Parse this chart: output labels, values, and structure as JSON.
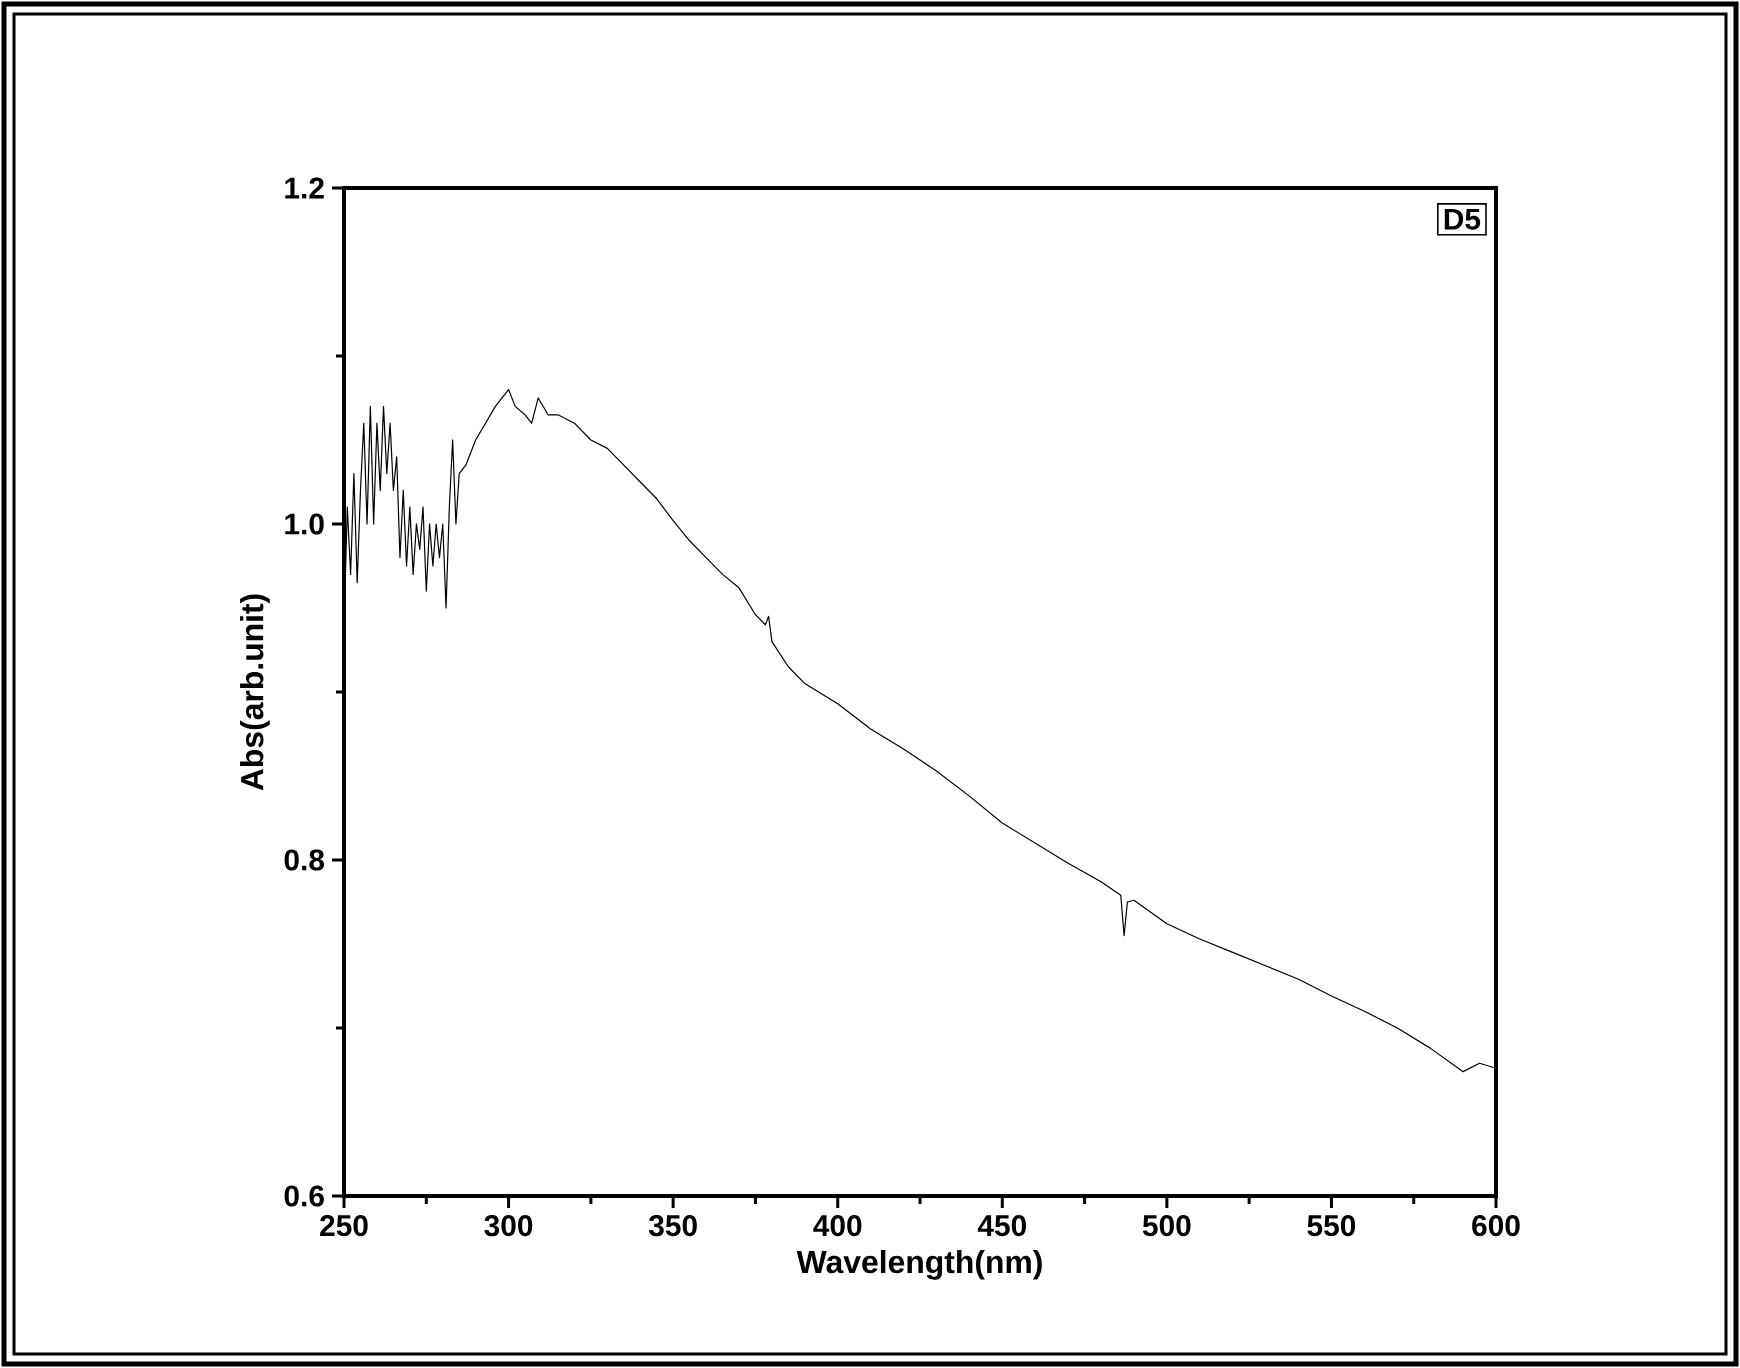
{
  "chart_data": {
    "type": "line",
    "xlabel": "Wavelength(nm)",
    "ylabel": "Abs(arb.unit)",
    "annotations": [
      "D5"
    ],
    "xlim": [
      250,
      600
    ],
    "xticks": [
      250,
      300,
      350,
      400,
      450,
      500,
      550,
      600
    ],
    "ylim": [
      0.6,
      1.2
    ],
    "yticks": [
      {
        "value": 0.6,
        "label": "0.6"
      },
      {
        "value": 0.8,
        "label": "0.8"
      },
      {
        "value": 1.0,
        "label": "1.0"
      },
      {
        "value": 1.2,
        "label": "1.2"
      }
    ],
    "grid": false,
    "marker": "none",
    "line_style": "solid",
    "series": [
      {
        "color": "#000000",
        "x": [
          250,
          251,
          252,
          253,
          254,
          255,
          256,
          257,
          258,
          259,
          260,
          261,
          262,
          263,
          264,
          265,
          266,
          267,
          268,
          269,
          270,
          271,
          272,
          273,
          274,
          275,
          276,
          277,
          278,
          279,
          280,
          281,
          282,
          283,
          284,
          285,
          287,
          290,
          293,
          296,
          298,
          300,
          302,
          305,
          307,
          309,
          312,
          315,
          320,
          325,
          330,
          335,
          340,
          345,
          350,
          355,
          360,
          365,
          370,
          375,
          378,
          379,
          380,
          385,
          390,
          400,
          410,
          420,
          430,
          440,
          450,
          460,
          470,
          480,
          486,
          487,
          488,
          490,
          500,
          510,
          520,
          530,
          540,
          550,
          560,
          570,
          580,
          590,
          595,
          600
        ],
        "values": [
          0.94,
          1.01,
          0.97,
          1.03,
          0.965,
          1.02,
          1.06,
          1.0,
          1.07,
          1.0,
          1.06,
          1.02,
          1.07,
          1.03,
          1.06,
          1.02,
          1.04,
          0.98,
          1.02,
          0.975,
          1.01,
          0.97,
          1.0,
          0.985,
          1.01,
          0.96,
          1.0,
          0.975,
          1.0,
          0.98,
          1.0,
          0.95,
          1.01,
          1.05,
          1.0,
          1.03,
          1.035,
          1.05,
          1.06,
          1.07,
          1.075,
          1.08,
          1.07,
          1.065,
          1.06,
          1.075,
          1.065,
          1.065,
          1.06,
          1.05,
          1.045,
          1.035,
          1.025,
          1.015,
          1.002,
          0.99,
          0.98,
          0.97,
          0.962,
          0.946,
          0.94,
          0.945,
          0.93,
          0.915,
          0.905,
          0.893,
          0.878,
          0.866,
          0.853,
          0.838,
          0.822,
          0.81,
          0.798,
          0.787,
          0.779,
          0.755,
          0.775,
          0.776,
          0.762,
          0.753,
          0.745,
          0.737,
          0.729,
          0.719,
          0.71,
          0.7,
          0.688,
          0.674,
          0.679,
          0.676
        ]
      }
    ]
  }
}
